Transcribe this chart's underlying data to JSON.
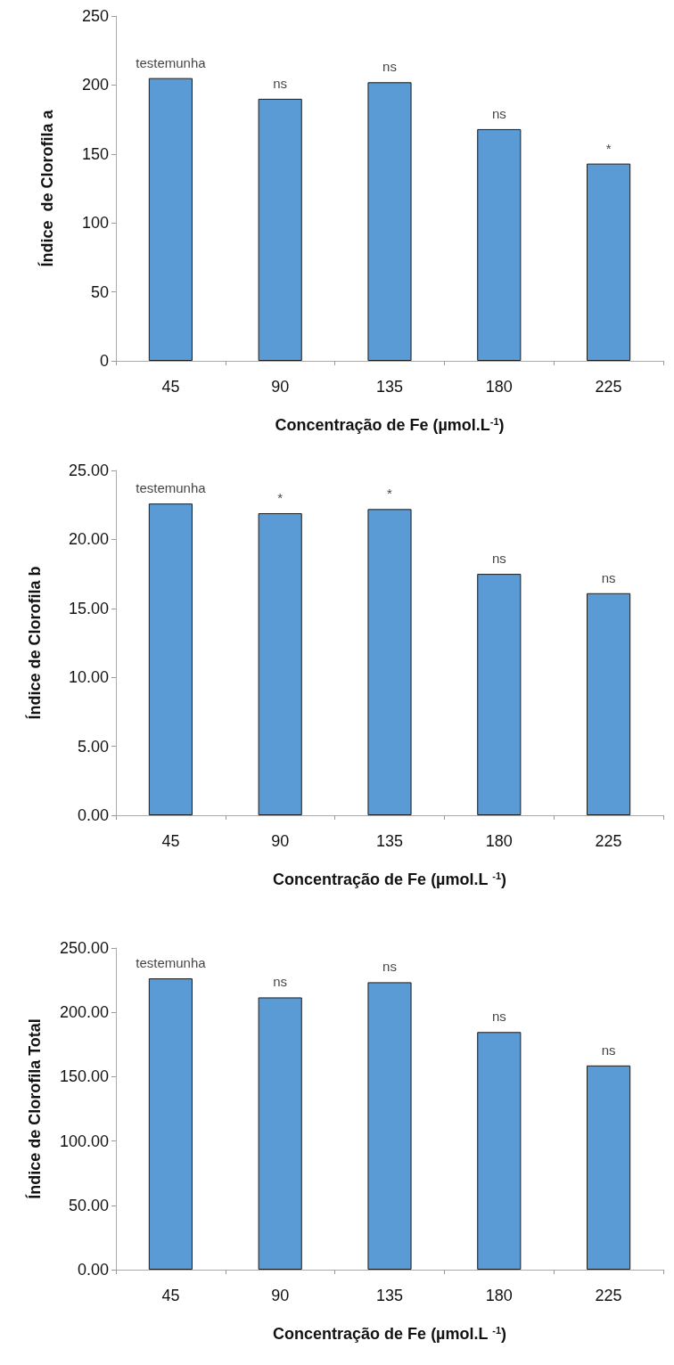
{
  "chart_data": [
    {
      "type": "bar",
      "xlabel": "Concentração de Fe (µmol.L$^{-1}$)",
      "ylabel": "Índice  de Clorofila a",
      "categories": [
        "45",
        "90",
        "135",
        "180",
        "225"
      ],
      "values": [
        205,
        190,
        202,
        168,
        143
      ],
      "color": "#5b9bd5",
      "ylim": [
        0,
        250
      ],
      "yticks": [
        0,
        50,
        100,
        150,
        200,
        250
      ],
      "grid": false,
      "annotations": [
        {
          "text": "testemunha",
          "x": "45",
          "y": 205
        },
        {
          "text": "ns",
          "x": "90",
          "y": 190
        },
        {
          "text": "ns",
          "x": "135",
          "y": 202
        },
        {
          "text": "ns",
          "x": "180",
          "y": 168
        },
        {
          "text": "*",
          "x": "225",
          "y": 143
        }
      ]
    },
    {
      "type": "bar",
      "xlabel": "Concentração de Fe (µmol.L $^{-1}$)",
      "ylabel": "Índice de Clorofila b",
      "categories": [
        "45",
        "90",
        "135",
        "180",
        "225"
      ],
      "values": [
        22.6,
        21.9,
        22.2,
        17.5,
        16.1
      ],
      "color": "#5b9bd5",
      "ylim": [
        0,
        25
      ],
      "yticks": [
        {
          "value": 0,
          "label": "0.00"
        },
        {
          "value": 5,
          "label": "5.00"
        },
        {
          "value": 10,
          "label": "10.00"
        },
        {
          "value": 15,
          "label": "15.00"
        },
        {
          "value": 20,
          "label": "20.00"
        },
        {
          "value": 25,
          "label": "25.00"
        }
      ],
      "grid": false,
      "annotations": [
        {
          "text": "testemunha",
          "x": "45",
          "y": 22.6
        },
        {
          "text": "*",
          "x": "90",
          "y": 21.9
        },
        {
          "text": "*",
          "x": "135",
          "y": 22.2
        },
        {
          "text": "ns",
          "x": "180",
          "y": 17.5
        },
        {
          "text": "ns",
          "x": "225",
          "y": 16.1
        }
      ]
    },
    {
      "type": "bar",
      "xlabel": "Concentração de Fe (µmol.L $^{-1}$)",
      "ylabel": "Índice de Clorofila Total",
      "categories": [
        "45",
        "90",
        "135",
        "180",
        "225"
      ],
      "values": [
        226.4,
        211.6,
        223.4,
        184.7,
        158.7
      ],
      "color": "#5b9bd5",
      "ylim": [
        0,
        250
      ],
      "yticks": [
        {
          "value": 0,
          "label": "0.00"
        },
        {
          "value": 50,
          "label": "50.00"
        },
        {
          "value": 100,
          "label": "100.00"
        },
        {
          "value": 150,
          "label": "150.00"
        },
        {
          "value": 200,
          "label": "200.00"
        },
        {
          "value": 250,
          "label": "250.00"
        }
      ],
      "grid": false,
      "annotations": [
        {
          "text": "testemunha",
          "x": "45",
          "y": 226.4
        },
        {
          "text": "ns",
          "x": "90",
          "y": 211.6
        },
        {
          "text": "ns",
          "x": "135",
          "y": 223.4
        },
        {
          "text": "ns",
          "x": "180",
          "y": 184.7
        },
        {
          "text": "ns",
          "x": "225",
          "y": 158.7
        }
      ]
    }
  ]
}
